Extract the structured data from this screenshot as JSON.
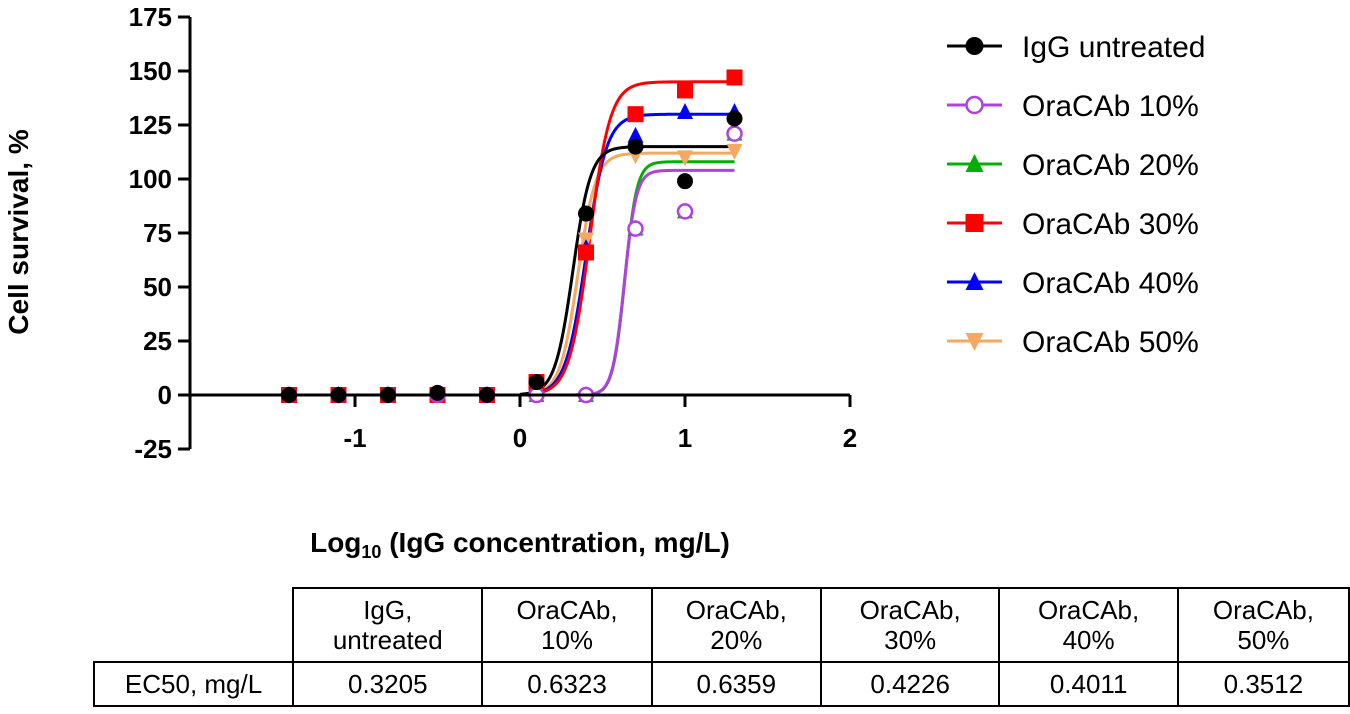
{
  "chart_data": {
    "type": "scatter",
    "title": "",
    "xlabel_prefix": "Log",
    "xlabel_subscript": "10",
    "xlabel_suffix": " (IgG concentration, mg/L)",
    "ylabel": "Cell survival, %",
    "xlim": [
      -2,
      2
    ],
    "ylim": [
      -25,
      175
    ],
    "x_ticks": [
      -1,
      0,
      1,
      2
    ],
    "y_ticks": [
      -25,
      0,
      25,
      50,
      75,
      100,
      125,
      150,
      175
    ],
    "x": [
      -1.4,
      -1.1,
      -0.8,
      -0.5,
      -0.2,
      0.1,
      0.4,
      0.7,
      1.0,
      1.3
    ],
    "series": [
      {
        "name": "IgG untreated",
        "color": "#000000",
        "marker": "circle-filled",
        "values": [
          0,
          0,
          0,
          1,
          0,
          6,
          84,
          115,
          99,
          128
        ],
        "fit": {
          "bottom": 0,
          "top": 115,
          "logEC50": 0.3205,
          "hill": 8
        }
      },
      {
        "name": "OraCAb 10%",
        "color": "#b040e0",
        "marker": "circle-open",
        "values": [
          0,
          0,
          0,
          0,
          0,
          0,
          0,
          77,
          85,
          121
        ],
        "fit": {
          "bottom": 0,
          "top": 104,
          "logEC50": 0.6323,
          "hill": 12
        }
      },
      {
        "name": "OraCAb 20%",
        "color": "#00b000",
        "marker": "triangle-up",
        "values": [
          0,
          0,
          0,
          0,
          0,
          0,
          0,
          77,
          85,
          121
        ],
        "fit": {
          "bottom": 0,
          "top": 108,
          "logEC50": 0.6359,
          "hill": 12
        }
      },
      {
        "name": "OraCAb 30%",
        "color": "#ff0000",
        "marker": "square",
        "values": [
          0,
          0,
          0,
          0,
          0,
          6,
          66,
          130,
          141,
          147
        ],
        "fit": {
          "bottom": 0,
          "top": 145,
          "logEC50": 0.4226,
          "hill": 7
        }
      },
      {
        "name": "OraCAb 40%",
        "color": "#0000ff",
        "marker": "triangle-up",
        "values": [
          0,
          0,
          0,
          0,
          0,
          5,
          68,
          120,
          131,
          131
        ],
        "fit": {
          "bottom": 0,
          "top": 130,
          "logEC50": 0.4011,
          "hill": 7
        }
      },
      {
        "name": "OraCAb 50%",
        "color": "#f5a860",
        "marker": "triangle-down",
        "values": [
          0,
          0,
          0,
          0,
          0,
          5,
          72,
          111,
          110,
          113
        ],
        "fit": {
          "bottom": 0,
          "top": 112,
          "logEC50": 0.3512,
          "hill": 8
        }
      }
    ],
    "legend_position": "right"
  },
  "table": {
    "headers": [
      "IgG,\nuntreated",
      "OraCAb,\n10%",
      "OraCAb,\n20%",
      "OraCAb,\n30%",
      "OraCAb,\n40%",
      "OraCAb,\n50%"
    ],
    "row_label": "EC50, mg/L",
    "values": [
      "0.3205",
      "0.6323",
      "0.6359",
      "0.4226",
      "0.4011",
      "0.3512"
    ]
  }
}
